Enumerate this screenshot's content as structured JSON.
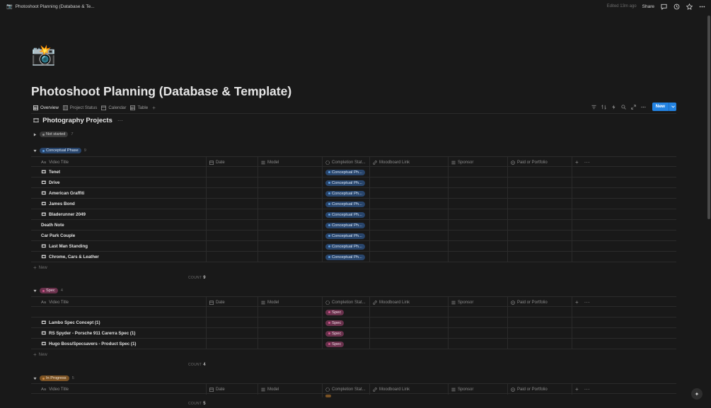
{
  "topbar": {
    "page_icon": "📷",
    "title": "Photoshoot Planning (Database & Te...",
    "edited": "Edited 13m ago",
    "share": "Share",
    "icons": [
      "comment-icon",
      "clock-icon",
      "star-icon",
      "more-icon"
    ]
  },
  "page": {
    "icon": "📸",
    "title": "Photoshoot Planning (Database & Template)"
  },
  "tabs": [
    {
      "label": "Overview",
      "icon": "table-icon",
      "active": true
    },
    {
      "label": "Project Status",
      "icon": "board-icon",
      "active": false
    },
    {
      "label": "Calendar",
      "icon": "calendar-icon",
      "active": false
    },
    {
      "label": "Table",
      "icon": "table-icon",
      "active": false
    }
  ],
  "toolbar": {
    "new_label": "New",
    "icons": [
      "filter-icon",
      "sort-icon",
      "lightning-icon",
      "search-icon",
      "expand-icon",
      "more-icon"
    ]
  },
  "database": {
    "icon": "🎞",
    "title": "Photography Projects"
  },
  "columns": {
    "title": "Video Title",
    "title_prefix": "Aa",
    "date": "Date",
    "model": "Model",
    "status": "Completion Stat...",
    "moodboard": "Moodboard Link",
    "sponsor": "Sponsor",
    "paid": "Paid or Portfolio"
  },
  "groups": {
    "not_started": {
      "label": "Not started",
      "count": "7"
    },
    "conceptual": {
      "label": "Conceptual Phase",
      "count": "9",
      "status_pill": "Conceptual Ph...",
      "rows": [
        {
          "title": "Tenet",
          "icon": "🎞"
        },
        {
          "title": "Drive",
          "icon": "🎞"
        },
        {
          "title": "American Graffiti",
          "icon": "🎞"
        },
        {
          "title": "James Bond",
          "icon": "🎞"
        },
        {
          "title": "Bladerunner 2049",
          "icon": "🎞"
        },
        {
          "title": "Death Note",
          "icon": ""
        },
        {
          "title": "Car Park Couple",
          "icon": ""
        },
        {
          "title": "Last Man Standing",
          "icon": "🎞"
        },
        {
          "title": "Chrome, Cars & Leather",
          "icon": "🎞"
        }
      ],
      "new_label": "New",
      "count_label": "COUNT",
      "count_value": "9"
    },
    "spec": {
      "label": "Spec",
      "count": "4",
      "status_pill": "Spec",
      "rows": [
        {
          "title": "",
          "icon": ""
        },
        {
          "title": "Lambo Spec Concept (1)",
          "icon": "🎞"
        },
        {
          "title": "RS Spyder - Porsche 911 Carerra Spec (1)",
          "icon": "🎞"
        },
        {
          "title": "Hugo Boss/Specsavers - Product Spec (1)",
          "icon": "🎞"
        }
      ],
      "new_label": "New",
      "count_label": "COUNT",
      "count_value": "4"
    },
    "in_progress": {
      "label": "In Progress",
      "count": "5",
      "count_label": "COUNT",
      "count_value": "5"
    }
  },
  "colors": {
    "background": "#191919",
    "accent": "#2383e2",
    "blue_tag": "#28456c",
    "pink_tag": "#69314c",
    "brown_tag": "#7a5224"
  }
}
